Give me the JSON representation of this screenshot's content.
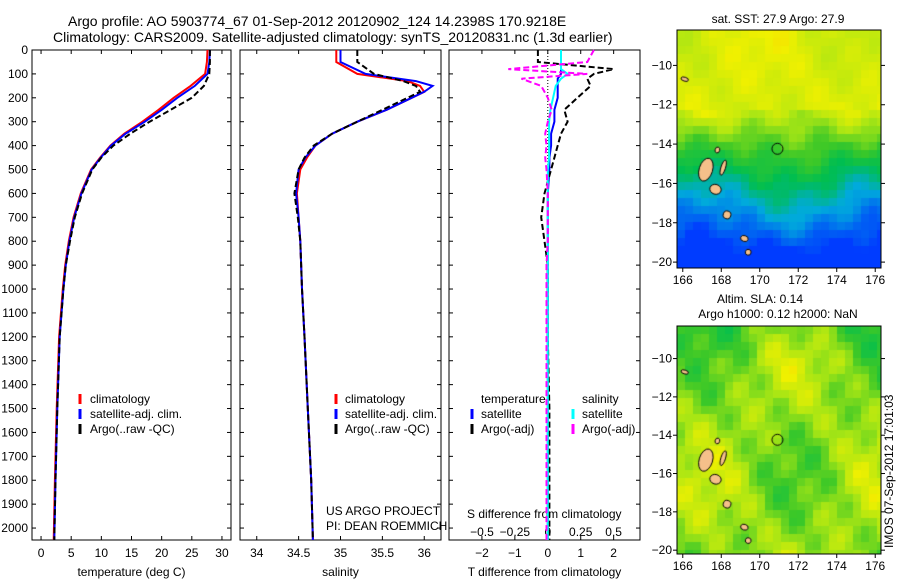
{
  "title": {
    "line1": "Argo profile: AO 5903774_67 01-Sep-2012 20120902_124 14.2398S 170.9218E",
    "line2": "Climatology: CARS2009. Satellite-adjusted climatology: synTS_20120831.nc (1.3d earlier)"
  },
  "credit": {
    "line1": "US ARGO PROJECT",
    "line2": "PI: DEAN ROEMMICH"
  },
  "stamp": "IMOS 07-Sep-2012 17:01:03",
  "colors": {
    "clim": "#ff0000",
    "sat": "#0000ff",
    "argo": "#000000",
    "sal_sat": "#00ffff",
    "sal_argo": "#ff00ff",
    "land": "#f5c08a"
  },
  "chart_data": [
    {
      "type": "line",
      "name": "temperature",
      "xlabel": "temperature (deg C)",
      "xlim": [
        -1.5,
        31.5
      ],
      "ylim": [
        2050,
        0
      ],
      "xticks": [
        0,
        5,
        10,
        15,
        20,
        25,
        30
      ],
      "yticks": [
        0,
        100,
        200,
        300,
        400,
        500,
        600,
        700,
        800,
        900,
        1000,
        1100,
        1200,
        1300,
        1400,
        1500,
        1600,
        1700,
        1800,
        1900,
        2000
      ],
      "legend": [
        "climatology",
        "satellite-adj. clim.",
        "Argo(..raw -QC)"
      ],
      "depth": [
        0,
        50,
        100,
        150,
        200,
        250,
        300,
        350,
        400,
        450,
        500,
        600,
        700,
        800,
        900,
        1000,
        1200,
        1500,
        1800,
        2050
      ],
      "series": [
        {
          "name": "climatology",
          "color": "#ff0000",
          "dash": false,
          "values": [
            27.6,
            27.5,
            27.2,
            24.8,
            22.0,
            19.5,
            16.8,
            13.8,
            11.5,
            9.8,
            8.3,
            6.6,
            5.4,
            4.6,
            4.0,
            3.6,
            3.0,
            2.6,
            2.3,
            2.1
          ]
        },
        {
          "name": "satellite-adj. clim.",
          "color": "#0000ff",
          "dash": false,
          "values": [
            28.0,
            27.9,
            27.6,
            25.5,
            22.6,
            20.0,
            17.2,
            14.0,
            11.6,
            9.9,
            8.4,
            6.7,
            5.5,
            4.7,
            4.1,
            3.7,
            3.1,
            2.7,
            2.4,
            2.2
          ]
        },
        {
          "name": "Argo(..raw -QC)",
          "color": "#000000",
          "dash": true,
          "values": [
            28.0,
            28.0,
            27.9,
            27.0,
            25.0,
            21.5,
            18.0,
            14.8,
            12.0,
            10.0,
            8.5,
            6.8,
            5.6,
            4.8,
            4.1,
            3.7,
            3.1,
            2.7,
            2.4,
            2.2
          ]
        }
      ]
    },
    {
      "type": "line",
      "name": "salinity",
      "xlabel": "salinity",
      "xlim": [
        33.8,
        36.2
      ],
      "ylim": [
        2050,
        0
      ],
      "xticks": [
        34,
        34.5,
        35,
        35.5,
        36
      ],
      "legend": [
        "climatology",
        "satellite-adj. clim.",
        "Argo(..raw -QC)"
      ],
      "depth": [
        0,
        50,
        100,
        130,
        150,
        175,
        200,
        250,
        300,
        350,
        400,
        450,
        500,
        600,
        700,
        800,
        1000,
        1200,
        1500,
        1800,
        2050
      ],
      "series": [
        {
          "name": "climatology",
          "color": "#ff0000",
          "dash": false,
          "values": [
            34.95,
            34.95,
            35.2,
            35.8,
            35.95,
            36.0,
            35.85,
            35.55,
            35.2,
            34.9,
            34.7,
            34.6,
            34.52,
            34.48,
            34.5,
            34.52,
            34.54,
            34.57,
            34.61,
            34.65,
            34.67
          ]
        },
        {
          "name": "satellite-adj. clim.",
          "color": "#0000ff",
          "dash": false,
          "values": [
            35.0,
            35.0,
            35.3,
            35.9,
            36.1,
            36.0,
            35.85,
            35.55,
            35.2,
            34.9,
            34.7,
            34.58,
            34.5,
            34.47,
            34.5,
            34.52,
            34.54,
            34.57,
            34.61,
            34.65,
            34.67
          ]
        },
        {
          "name": "Argo(..raw -QC)",
          "color": "#000000",
          "dash": true,
          "values": [
            35.2,
            35.2,
            35.4,
            35.75,
            35.9,
            35.95,
            35.8,
            35.5,
            35.2,
            34.9,
            34.68,
            34.57,
            34.5,
            34.45,
            34.49,
            34.52,
            34.54,
            34.57,
            34.61,
            34.65,
            34.67
          ]
        }
      ]
    },
    {
      "type": "line",
      "name": "difference",
      "xlabel": "T difference from climatology",
      "x2label": "S difference from climatology",
      "xlim": [
        -3,
        2.8
      ],
      "ylim": [
        2050,
        0
      ],
      "xticks": [
        -2,
        -1,
        0,
        1,
        2
      ],
      "x2ticks": [
        -0.5,
        -0.25,
        0,
        0.25,
        0.5
      ],
      "legend": {
        "temperature": "temperature",
        "salinity": "salinity",
        "t_sat": "satellite",
        "t_argo": "Argo(-adj)",
        "s_sat": "satellite",
        "s_argo": "Argo(-adj)"
      },
      "depth": [
        0,
        50,
        80,
        100,
        120,
        150,
        200,
        250,
        300,
        350,
        400,
        450,
        500,
        600,
        700,
        800,
        900,
        1000,
        1200,
        1500,
        1800,
        2050
      ],
      "series": [
        {
          "name": "T satellite",
          "color": "#0000ff",
          "dash": false,
          "values": [
            0.4,
            0.4,
            0.4,
            0.4,
            0.3,
            0.3,
            0.3,
            0.2,
            0.2,
            0.1,
            0.1,
            0.05,
            0.05,
            0,
            0,
            0,
            0,
            0,
            0,
            0,
            0,
            0
          ]
        },
        {
          "name": "T Argo(-adj)",
          "color": "#000000",
          "dash": true,
          "values": [
            -0.3,
            -0.3,
            2.0,
            1.4,
            1.2,
            1.3,
            0.9,
            0.5,
            0.6,
            0.4,
            0.3,
            0.2,
            0.1,
            -0.1,
            -0.2,
            -0.1,
            0,
            0,
            0,
            0.05,
            0.05,
            0.05
          ]
        },
        {
          "name": "S satellite",
          "color": "#00ffff",
          "dash": false,
          "values": [
            0.1,
            0.1,
            0.1,
            0.15,
            0.1,
            0.06,
            0.04,
            0.02,
            0.01,
            0.01,
            0.01,
            0.01,
            0,
            0,
            0,
            0,
            0,
            0,
            0,
            0,
            0,
            0
          ]
        },
        {
          "name": "S Argo(-adj)",
          "color": "#ff00ff",
          "dash": true,
          "values": [
            0.35,
            0.3,
            -0.3,
            0.3,
            -0.2,
            -0.05,
            0.0,
            0.03,
            0.0,
            -0.02,
            -0.01,
            -0.02,
            -0.01,
            0,
            0,
            0,
            -0.01,
            -0.01,
            -0.01,
            -0.01,
            -0.01,
            -0.01
          ]
        }
      ]
    },
    {
      "type": "heatmap",
      "name": "sst-map",
      "title": "sat. SST: 27.9 Argo: 27.9",
      "xlim": [
        165.7,
        176.3
      ],
      "ylim": [
        -8.2,
        -20.3
      ],
      "xticks": [
        166,
        168,
        170,
        172,
        174,
        176
      ],
      "yticks": [
        -10,
        -12,
        -14,
        -16,
        -18,
        -20
      ],
      "marker": [
        170.92,
        -14.24
      ]
    },
    {
      "type": "heatmap",
      "name": "sla-map",
      "title": "Altim. SLA: 0.14",
      "subtitle": "Argo h1000: 0.12 h2000: NaN",
      "xlim": [
        165.7,
        176.3
      ],
      "ylim": [
        -8.3,
        -20.2
      ],
      "xticks": [
        166,
        168,
        170,
        172,
        174,
        176
      ],
      "yticks": [
        -10,
        -12,
        -14,
        -16,
        -18,
        -20
      ],
      "marker": [
        170.92,
        -14.24
      ]
    }
  ]
}
